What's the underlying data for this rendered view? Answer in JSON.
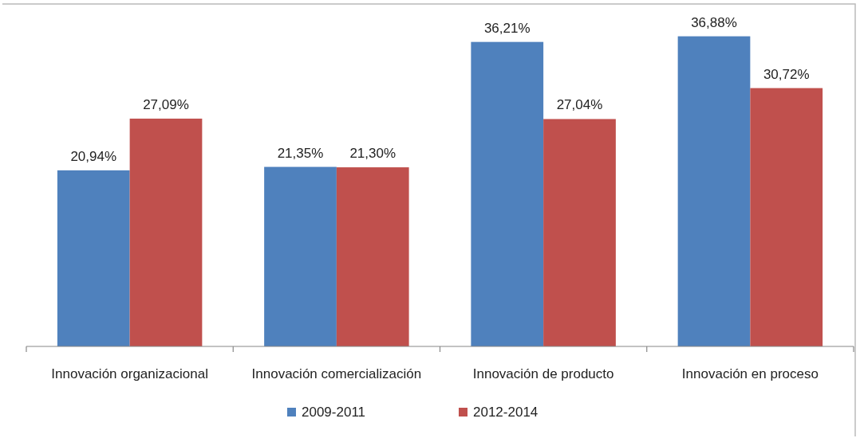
{
  "chart_data": {
    "type": "bar",
    "categories": [
      "Innovación organizacional",
      "Innovación comercialización",
      "Innovación de producto",
      "Innovación en proceso"
    ],
    "series": [
      {
        "name": "2009-2011",
        "color": "#4f81bd",
        "values": [
          20.94,
          21.35,
          36.21,
          36.88
        ],
        "value_labels": [
          "20,94%",
          "21,35%",
          "36,21%",
          "36,88%"
        ]
      },
      {
        "name": "2012-2014",
        "color": "#c0504d",
        "values": [
          27.09,
          21.3,
          27.04,
          30.72
        ],
        "value_labels": [
          "27,09%",
          "21,30%",
          "27,04%",
          "30,72%"
        ]
      }
    ],
    "legend": "bottom",
    "grid": false
  }
}
